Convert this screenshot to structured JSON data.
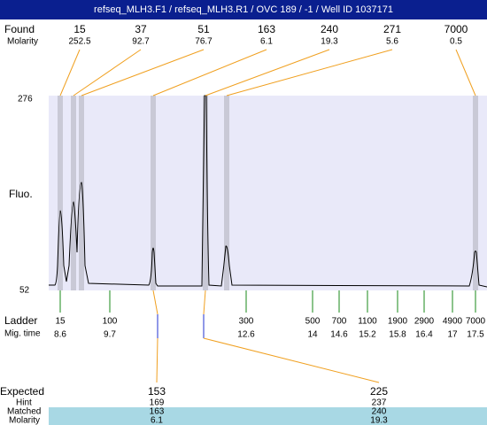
{
  "title": "refseq_MLH3.F1 / refseq_MLH3.R1 / OVC 189 / -1 / Well ID 1037171",
  "found": {
    "label": "Found",
    "sublabel": "Molarity",
    "peaks": [
      {
        "size": 15,
        "molarity": 252.5
      },
      {
        "size": 37,
        "molarity": 92.7
      },
      {
        "size": 51,
        "molarity": 76.7
      },
      {
        "size": 163,
        "molarity": 6.1
      },
      {
        "size": 240,
        "molarity": 19.3
      },
      {
        "size": 271,
        "molarity": 5.6
      },
      {
        "size": 7000,
        "molarity": 0.5
      }
    ]
  },
  "y_axis": {
    "label": "Fluo.",
    "max": 276,
    "min": 52
  },
  "ladder": {
    "label": "Ladder",
    "sublabel": "Mig. time",
    "bands": [
      {
        "size": 15,
        "time": 8.6
      },
      {
        "size": 100,
        "time": 9.7
      },
      {
        "size": 300,
        "time": 12.6
      },
      {
        "size": 500,
        "time": 14
      },
      {
        "size": 700,
        "time": 14.6
      },
      {
        "size": 1100,
        "time": 15.2
      },
      {
        "size": 1900,
        "time": 15.8
      },
      {
        "size": 2900,
        "time": 16.4
      },
      {
        "size": 4900,
        "time": 17
      },
      {
        "size": 7000,
        "time": 17.5
      }
    ]
  },
  "expected": {
    "labels": [
      "Expected",
      "Hint",
      "Matched",
      "Molarity"
    ],
    "items": [
      {
        "expected": 153,
        "hint": 169,
        "matched": 163,
        "molarity": 6.1
      },
      {
        "expected": 225,
        "hint": 237,
        "matched": 240,
        "molarity": 19.3
      }
    ]
  }
}
